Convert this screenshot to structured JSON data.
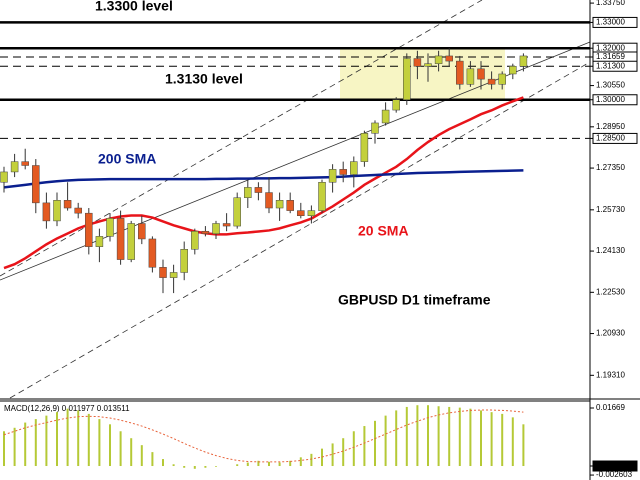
{
  "chart_data": [
    {
      "type": "candlestick",
      "ylim": [
        1.1843,
        1.3387
      ],
      "yticks": [
        {
          "value": 1.3375,
          "label": "1.33750"
        },
        {
          "value": 1.33,
          "label": "1.33000",
          "boxed": true
        },
        {
          "value": 1.32,
          "label": "1.32000",
          "boxed": true
        },
        {
          "value": 1.31659,
          "label": "1.31659",
          "boxed": true
        },
        {
          "value": 1.313,
          "label": "1.31300",
          "boxed": true
        },
        {
          "value": 1.3055,
          "label": "1.30550"
        },
        {
          "value": 1.3,
          "label": "1.30000",
          "boxed": true
        },
        {
          "value": 1.2895,
          "label": "1.28950"
        },
        {
          "value": 1.285,
          "label": "1.28500",
          "boxed": true
        },
        {
          "value": 1.2735,
          "label": "1.27350"
        },
        {
          "value": 1.2573,
          "label": "1.25730"
        },
        {
          "value": 1.2413,
          "label": "1.24130"
        },
        {
          "value": 1.2253,
          "label": "1.22530"
        },
        {
          "value": 1.2093,
          "label": "1.20930"
        },
        {
          "value": 1.1931,
          "label": "1.19310"
        }
      ],
      "levels": [
        {
          "value": 1.33,
          "style": "solid"
        },
        {
          "value": 1.32,
          "style": "solid"
        },
        {
          "value": 1.3,
          "style": "solid"
        },
        {
          "value": 1.31659,
          "style": "dashed"
        },
        {
          "value": 1.313,
          "style": "dashed"
        },
        {
          "value": 1.285,
          "style": "dashed"
        }
      ],
      "zone": [
        1.3,
        1.32
      ],
      "zone_color": "#f7f5c4",
      "up_color": "#c3d03c",
      "down_color": "#e35a22",
      "open": [
        1.268,
        1.272,
        1.276,
        1.2745,
        1.26,
        1.253,
        1.261,
        1.258,
        1.256,
        1.243,
        1.247,
        1.254,
        1.238,
        1.252,
        1.246,
        1.235,
        1.231,
        1.233,
        1.242,
        1.249,
        1.248,
        1.252,
        1.251,
        1.262,
        1.266,
        1.264,
        1.258,
        1.261,
        1.257,
        1.255,
        1.257,
        1.268,
        1.273,
        1.271,
        1.276,
        1.287,
        1.291,
        1.296,
        1.3,
        1.316,
        1.313,
        1.314,
        1.317,
        1.315,
        1.306,
        1.312,
        1.308,
        1.306,
        1.31,
        1.313
      ],
      "high": [
        1.274,
        1.279,
        1.281,
        1.277,
        1.264,
        1.264,
        1.268,
        1.26,
        1.258,
        1.25,
        1.256,
        1.257,
        1.253,
        1.255,
        1.247,
        1.238,
        1.236,
        1.245,
        1.25,
        1.251,
        1.253,
        1.256,
        1.264,
        1.269,
        1.268,
        1.27,
        1.264,
        1.264,
        1.26,
        1.259,
        1.269,
        1.275,
        1.276,
        1.278,
        1.288,
        1.292,
        1.299,
        1.301,
        1.318,
        1.319,
        1.318,
        1.319,
        1.32,
        1.317,
        1.315,
        1.315,
        1.311,
        1.311,
        1.314,
        1.318
      ],
      "low": [
        1.264,
        1.27,
        1.273,
        1.256,
        1.25,
        1.251,
        1.257,
        1.254,
        1.24,
        1.237,
        1.245,
        1.236,
        1.237,
        1.244,
        1.233,
        1.225,
        1.225,
        1.23,
        1.24,
        1.247,
        1.246,
        1.249,
        1.25,
        1.258,
        1.261,
        1.256,
        1.253,
        1.256,
        1.254,
        1.252,
        1.256,
        1.264,
        1.268,
        1.266,
        1.274,
        1.283,
        1.29,
        1.295,
        1.298,
        1.308,
        1.307,
        1.311,
        1.313,
        1.304,
        1.305,
        1.304,
        1.304,
        1.304,
        1.308,
        1.311
      ],
      "close": [
        1.272,
        1.276,
        1.2745,
        1.26,
        1.253,
        1.261,
        1.258,
        1.256,
        1.243,
        1.247,
        1.254,
        1.238,
        1.252,
        1.246,
        1.235,
        1.231,
        1.233,
        1.242,
        1.249,
        1.248,
        1.252,
        1.251,
        1.262,
        1.266,
        1.264,
        1.258,
        1.261,
        1.257,
        1.255,
        1.257,
        1.268,
        1.273,
        1.271,
        1.276,
        1.287,
        1.291,
        1.296,
        1.3,
        1.316,
        1.313,
        1.314,
        1.317,
        1.315,
        1.306,
        1.312,
        1.308,
        1.306,
        1.31,
        1.313,
        1.317
      ],
      "series": [
        {
          "color": "#e8141a",
          "values": [
            1.2347,
            1.2362,
            1.2385,
            1.2412,
            1.2439,
            1.2462,
            1.2481,
            1.2501,
            1.2516,
            1.2528,
            1.2539,
            1.2547,
            1.2551,
            1.2551,
            1.2543,
            1.2528,
            1.2513,
            1.2501,
            1.2489,
            1.2482,
            1.2478,
            1.2478,
            1.2482,
            1.2485,
            1.2489,
            1.2493,
            1.2501,
            1.2513,
            1.2524,
            1.2539,
            1.2563,
            1.2586,
            1.2613,
            1.264,
            1.267,
            1.2694,
            1.2717,
            1.274,
            1.277,
            1.2805,
            1.2836,
            1.2863,
            1.2886,
            1.2905,
            1.2924,
            1.2944,
            1.2959,
            1.2978,
            1.2994,
            1.3009
          ]
        },
        {
          "color": "#0a1f8f",
          "values": [
            1.266,
            1.2665,
            1.267,
            1.2675,
            1.268,
            1.2684,
            1.2687,
            1.2689,
            1.269,
            1.2691,
            1.2692,
            1.2692,
            1.2692,
            1.2692,
            1.2692,
            1.2692,
            1.2692,
            1.2692,
            1.2692,
            1.2692,
            1.2693,
            1.2693,
            1.2694,
            1.2694,
            1.2695,
            1.2695,
            1.2696,
            1.2696,
            1.2697,
            1.2698,
            1.2699,
            1.27,
            1.2702,
            1.2704,
            1.2706,
            1.2708,
            1.271,
            1.2712,
            1.2714,
            1.2716,
            1.2717,
            1.2718,
            1.2719,
            1.272,
            1.2721,
            1.2722,
            1.2723,
            1.2724,
            1.2725,
            1.2726
          ]
        }
      ],
      "annotations": [
        {
          "text": "1.3300 level",
          "color": "#000000"
        },
        {
          "text": "1.3130 level",
          "color": "#000000"
        },
        {
          "text": "200 SMA",
          "color": "#0a1f8f"
        },
        {
          "text": "20 SMA",
          "color": "#e8141a"
        },
        {
          "text": "GBPUSD D1 timeframe",
          "color": "#000000"
        }
      ]
    },
    {
      "type": "bar",
      "title": "MACD(12,26,9) 0.011977 0.013511",
      "ylim": [
        -0.00345,
        0.01842
      ],
      "yticks": [
        {
          "value": 0.01669,
          "label": "0.01669"
        },
        {
          "value": 0,
          "label": "0.00",
          "boxed": true
        },
        {
          "value": -0.002603,
          "label": "-0.002603"
        }
      ],
      "color": "#b5c936",
      "values": [
        0.01,
        0.011,
        0.0125,
        0.0135,
        0.0145,
        0.0155,
        0.0165,
        0.016,
        0.015,
        0.0135,
        0.012,
        0.01,
        0.008,
        0.006,
        0.004,
        0.002,
        0.0005,
        -0.0005,
        -0.0008,
        -0.0005,
        -0.0002,
        0.0,
        0.0005,
        0.001,
        0.0015,
        0.0012,
        0.001,
        0.0015,
        0.0025,
        0.0035,
        0.005,
        0.0065,
        0.008,
        0.01,
        0.0115,
        0.013,
        0.0145,
        0.016,
        0.017,
        0.0175,
        0.0175,
        0.0172,
        0.017,
        0.0168,
        0.0165,
        0.016,
        0.0155,
        0.015,
        0.014,
        0.012
      ],
      "series": [
        {
          "color": "#e8643c",
          "values": [
            0.009,
            0.01,
            0.011,
            0.0118,
            0.0125,
            0.0132,
            0.0138,
            0.0142,
            0.0143,
            0.0142,
            0.0138,
            0.0132,
            0.0124,
            0.0115,
            0.0104,
            0.0092,
            0.0079,
            0.0065,
            0.0052,
            0.004,
            0.003,
            0.0022,
            0.0016,
            0.0013,
            0.0012,
            0.0012,
            0.0012,
            0.0013,
            0.0016,
            0.002,
            0.0026,
            0.0034,
            0.0043,
            0.0054,
            0.0066,
            0.0079,
            0.0092,
            0.0105,
            0.0118,
            0.0129,
            0.0139,
            0.0147,
            0.0153,
            0.0157,
            0.016,
            0.0161,
            0.0161,
            0.016,
            0.0158,
            0.0155
          ]
        }
      ]
    }
  ]
}
